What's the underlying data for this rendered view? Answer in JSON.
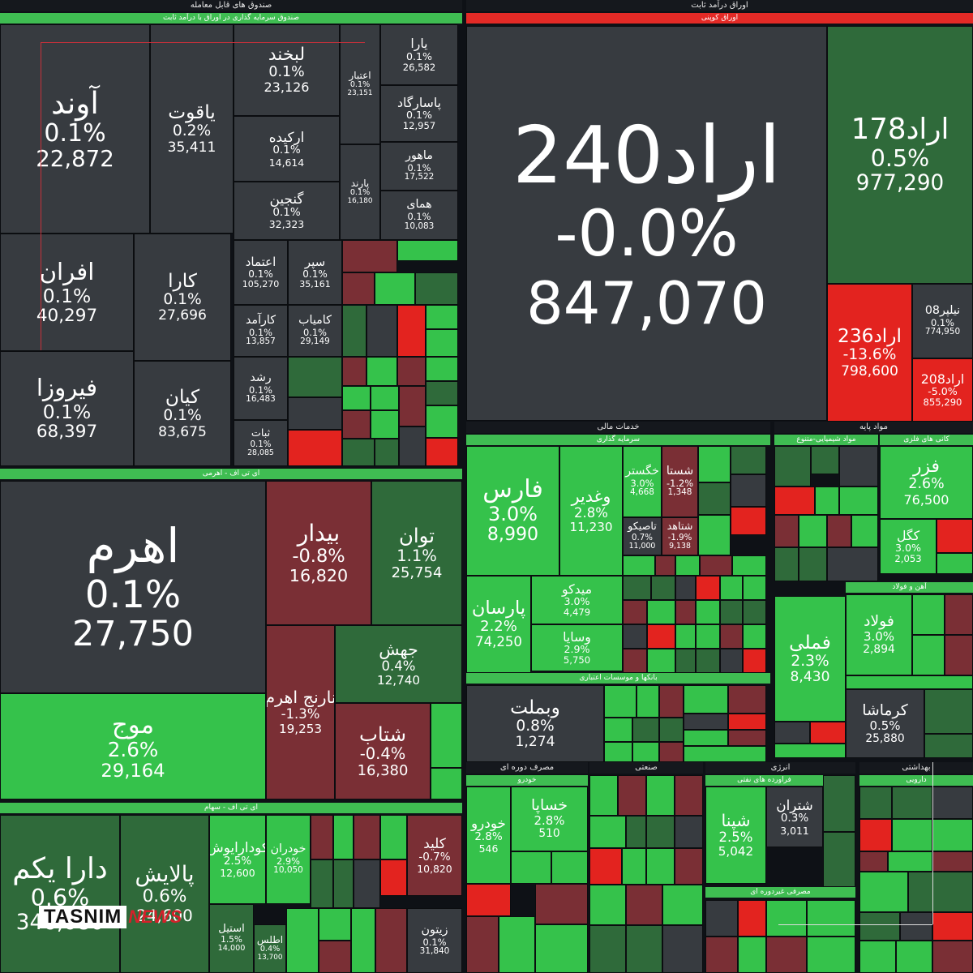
{
  "headers": {
    "left_top": "صندوق های قابل معامله",
    "left_top_sub": "صندوق سرمایه گذاری در اوراق با درآمد ثابت",
    "right_top": "اوراق درآمد ثابت",
    "right_top_sub": "اوراق کوپنی",
    "left_mid": "ای تی اف - اهرمی",
    "left_bottom": "ای تی اف - سهام",
    "khadamat": "خدمات مالی",
    "sarmaye": "سرمایه گذاری",
    "bank": "بانکها و موسسات اعتباری",
    "mavad": "مواد پایه",
    "shimi": "مواد شیمیایی-متنوع",
    "kani": "کانی های فلزی",
    "ahan": "آهن و فولاد",
    "masraf_doreh": "مصرف دوره ای",
    "khodro": "خودرو",
    "sanati": "صنعتی",
    "enerji": "انرژی",
    "farvarde": "فراورده های نفتی",
    "behdasht": "بهداشتی",
    "daroei": "دارویی",
    "masraf_gheir": "مصرفی غیردوره ای"
  },
  "colors": {
    "neutral": "#373b40",
    "green_dark": "#2f6a3a",
    "green": "#35c24b",
    "green_light": "#3dd354",
    "red_dark": "#7a2f35",
    "red": "#e3231f",
    "header_red": "#e32a26",
    "header_green": "#3fbd52"
  },
  "chart_data": {
    "type": "heatmap",
    "tiles": [
      {
        "name": "آوند",
        "change": "0.1%",
        "value": "22,872"
      },
      {
        "name": "یاقوت",
        "change": "0.2%",
        "value": "35,411"
      },
      {
        "name": "لبخند",
        "change": "0.1%",
        "value": "23,126"
      },
      {
        "name": "ارکیده",
        "change": "0.1%",
        "value": "14,614"
      },
      {
        "name": "گنجین",
        "change": "0.1%",
        "value": "32,323"
      },
      {
        "name": "اعتبار",
        "change": "0.1%",
        "value": "23,151"
      },
      {
        "name": "پارند",
        "change": "0.1%",
        "value": "16,180"
      },
      {
        "name": "یارا",
        "change": "0.1%",
        "value": "26,582"
      },
      {
        "name": "پاسارگاد",
        "change": "0.1%",
        "value": "12,957"
      },
      {
        "name": "ماهور",
        "change": "0.1%",
        "value": "17,522"
      },
      {
        "name": "همای",
        "change": "0.1%",
        "value": "10,083"
      },
      {
        "name": "افران",
        "change": "0.1%",
        "value": "40,297"
      },
      {
        "name": "کارا",
        "change": "0.1%",
        "value": "27,696"
      },
      {
        "name": "اعتماد",
        "change": "0.1%",
        "value": "105,270"
      },
      {
        "name": "سپر",
        "change": "0.1%",
        "value": "35,161"
      },
      {
        "name": "کارآمد",
        "change": "0.1%",
        "value": "13,857"
      },
      {
        "name": "کامیاب",
        "change": "0.1%",
        "value": "29,149"
      },
      {
        "name": "فیروزا",
        "change": "0.1%",
        "value": "68,397"
      },
      {
        "name": "کیان",
        "change": "0.1%",
        "value": "83,675"
      },
      {
        "name": "رشد",
        "change": "0.1%",
        "value": "16,483"
      },
      {
        "name": "ثبات",
        "change": "0.1%",
        "value": "28,085"
      },
      {
        "name": "اراد240",
        "change": "-0.0%",
        "value": "847,070"
      },
      {
        "name": "اراد178",
        "change": "0.5%",
        "value": "977,290"
      },
      {
        "name": "اراد236",
        "change": "-13.6%",
        "value": "798,600"
      },
      {
        "name": "نیلپر08",
        "change": "0.1%",
        "value": "774,950"
      },
      {
        "name": "اراد208",
        "change": "-5.0%",
        "value": "855,290"
      },
      {
        "name": "اهرم",
        "change": "0.1%",
        "value": "27,750"
      },
      {
        "name": "بیدار",
        "change": "-0.8%",
        "value": "16,820"
      },
      {
        "name": "توان",
        "change": "1.1%",
        "value": "25,754"
      },
      {
        "name": "جهش",
        "change": "0.4%",
        "value": "12,740"
      },
      {
        "name": "نارنج اهرم",
        "change": "-1.3%",
        "value": "19,253"
      },
      {
        "name": "شتاب",
        "change": "-0.4%",
        "value": "16,380"
      },
      {
        "name": "موج",
        "change": "2.6%",
        "value": "29,164"
      },
      {
        "name": "دارا یکم",
        "change": "0.6%",
        "value": "346,080"
      },
      {
        "name": "پالایش",
        "change": "0.6%",
        "value": "24,600"
      },
      {
        "name": "کودارایوش",
        "change": "2.5%",
        "value": "12,600"
      },
      {
        "name": "خودران",
        "change": "2.9%",
        "value": "10,050"
      },
      {
        "name": "استیل",
        "change": "1.5%",
        "value": "14,000"
      },
      {
        "name": "اطلس",
        "change": "0.4%",
        "value": "13,700"
      },
      {
        "name": "کلید",
        "change": "-0.7%",
        "value": "10,820"
      },
      {
        "name": "زیتون",
        "change": "0.1%",
        "value": "31,840"
      },
      {
        "name": "فارس",
        "change": "3.0%",
        "value": "8,990"
      },
      {
        "name": "وغدیر",
        "change": "2.8%",
        "value": "11,230"
      },
      {
        "name": "پارسان",
        "change": "2.2%",
        "value": "74,250"
      },
      {
        "name": "میدکو",
        "change": "3.0%",
        "value": "4,479"
      },
      {
        "name": "وسایا",
        "change": "2.9%",
        "value": "5,750"
      },
      {
        "name": "خگستر",
        "change": "3.0%",
        "value": "4,668"
      },
      {
        "name": "شستا",
        "change": "-1.2%",
        "value": "1,348"
      },
      {
        "name": "تاصیکو",
        "change": "0.7%",
        "value": "11,000"
      },
      {
        "name": "شتاهد",
        "change": "-1.9%",
        "value": "9,138"
      },
      {
        "name": "وبملت",
        "change": "0.8%",
        "value": "1,274"
      },
      {
        "name": "فزر",
        "change": "2.6%",
        "value": "76,500"
      },
      {
        "name": "کگل",
        "change": "3.0%",
        "value": "2,053"
      },
      {
        "name": "فملی",
        "change": "2.3%",
        "value": "8,430"
      },
      {
        "name": "فولاد",
        "change": "3.0%",
        "value": "2,894"
      },
      {
        "name": "کرماشا",
        "change": "0.5%",
        "value": "25,880"
      },
      {
        "name": "خساپا",
        "change": "2.8%",
        "value": "510"
      },
      {
        "name": "خودرو",
        "change": "2.8%",
        "value": "546"
      },
      {
        "name": "شپنا",
        "change": "2.5%",
        "value": "5,042"
      },
      {
        "name": "شتران",
        "change": "0.3%",
        "value": "3,011"
      }
    ]
  },
  "brand": {
    "logo_text": "TASNIM",
    "logo_suffix": "NEWS"
  }
}
